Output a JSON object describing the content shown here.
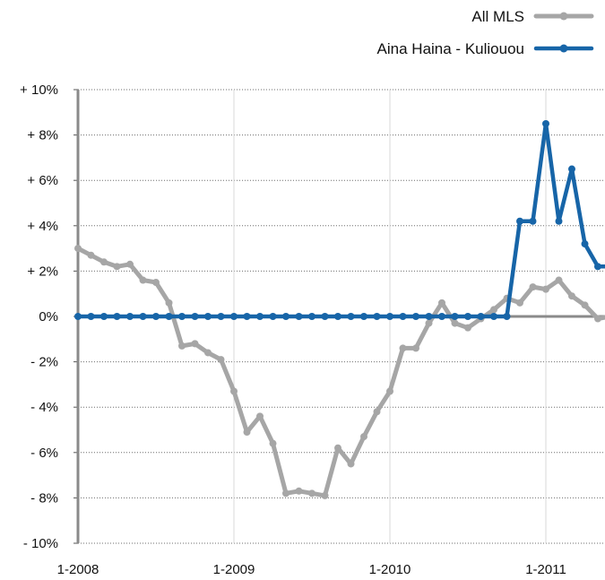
{
  "chart_data": {
    "type": "line",
    "title": "",
    "xlabel": "",
    "ylabel": "",
    "ylim": [
      -10,
      10
    ],
    "y_ticks": [
      {
        "value": 10,
        "label": "+ 10%"
      },
      {
        "value": 8,
        "label": "+ 8%"
      },
      {
        "value": 6,
        "label": "+ 6%"
      },
      {
        "value": 4,
        "label": "+ 4%"
      },
      {
        "value": 2,
        "label": "+ 2%"
      },
      {
        "value": 0,
        "label": "0%"
      },
      {
        "value": -2,
        "label": "- 2%"
      },
      {
        "value": -4,
        "label": "- 4%"
      },
      {
        "value": -6,
        "label": "- 6%"
      },
      {
        "value": -8,
        "label": "- 8%"
      },
      {
        "value": -10,
        "label": "- 10%"
      }
    ],
    "x_ticks": [
      {
        "value": "2008-01",
        "label": "1-2008"
      },
      {
        "value": "2009-01",
        "label": "1-2009"
      },
      {
        "value": "2010-01",
        "label": "1-2010"
      },
      {
        "value": "2011-01",
        "label": "1-2011"
      }
    ],
    "x": [
      "2008-01",
      "2008-02",
      "2008-03",
      "2008-04",
      "2008-05",
      "2008-06",
      "2008-07",
      "2008-08",
      "2008-09",
      "2008-10",
      "2008-11",
      "2008-12",
      "2009-01",
      "2009-02",
      "2009-03",
      "2009-04",
      "2009-05",
      "2009-06",
      "2009-07",
      "2009-08",
      "2009-09",
      "2009-10",
      "2009-11",
      "2009-12",
      "2010-01",
      "2010-02",
      "2010-03",
      "2010-04",
      "2010-05",
      "2010-06",
      "2010-07",
      "2010-08",
      "2010-09",
      "2010-10",
      "2010-11",
      "2010-12",
      "2011-01",
      "2011-02",
      "2011-03",
      "2011-04",
      "2011-05",
      "2011-06"
    ],
    "grid": true,
    "legend_position": "top-right",
    "series": [
      {
        "name": "All MLS",
        "color": "#a6a6a6",
        "values": [
          3.0,
          2.7,
          2.4,
          2.2,
          2.3,
          1.6,
          1.5,
          0.6,
          -1.3,
          -1.2,
          -1.6,
          -1.9,
          -3.3,
          -5.1,
          -4.4,
          -5.6,
          -7.8,
          -7.7,
          -7.8,
          -7.9,
          -5.8,
          -6.5,
          -5.3,
          -4.2,
          -3.3,
          -1.4,
          -1.4,
          -0.3,
          0.6,
          -0.3,
          -0.5,
          -0.1,
          0.3,
          0.8,
          0.6,
          1.3,
          1.2,
          1.6,
          0.9,
          0.5,
          -0.1,
          0.0
        ]
      },
      {
        "name": "Aina Haina - Kuliouou",
        "color": "#1765a8",
        "values": [
          0,
          0,
          0,
          0,
          0,
          0,
          0,
          0,
          0,
          0,
          0,
          0,
          0,
          0,
          0,
          0,
          0,
          0,
          0,
          0,
          0,
          0,
          0,
          0,
          0,
          0,
          0,
          0,
          0,
          0,
          0,
          0,
          0,
          0,
          4.2,
          4.2,
          8.5,
          4.2,
          6.5,
          3.2,
          2.2,
          2.2
        ]
      }
    ]
  }
}
